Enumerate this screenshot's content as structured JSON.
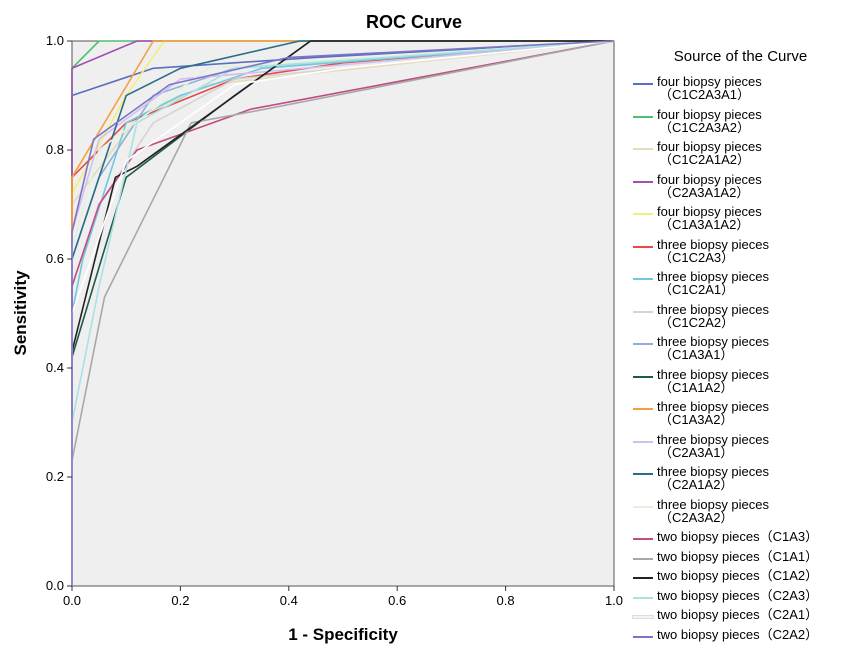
{
  "chart_data": {
    "type": "line",
    "title": "ROC Curve",
    "xlabel": "1 - Specificity",
    "ylabel": "Sensitivity",
    "xlim": [
      0,
      1
    ],
    "ylim": [
      0,
      1
    ],
    "xticks": [
      "0.0",
      "0.2",
      "0.4",
      "0.6",
      "0.8",
      "1.0"
    ],
    "yticks": [
      "0.0",
      "0.2",
      "0.4",
      "0.6",
      "0.8",
      "1.0"
    ],
    "grid": false,
    "legend_title": "Source of the Curve",
    "legend_position": "right",
    "series": [
      {
        "name": "four biopsy pieces",
        "name2": "（C1C2A3A1）",
        "color": "#5b6fc0",
        "points": [
          [
            0,
            0
          ],
          [
            0,
            0.9
          ],
          [
            0.15,
            0.95
          ],
          [
            0.45,
            0.97
          ],
          [
            1,
            1
          ]
        ]
      },
      {
        "name": "four biopsy pieces",
        "name2": "（C1C2A3A2）",
        "color": "#4cc070",
        "points": [
          [
            0,
            0
          ],
          [
            0,
            0.95
          ],
          [
            0.05,
            1
          ],
          [
            1,
            1
          ]
        ]
      },
      {
        "name": "four biopsy pieces",
        "name2": "（C1C2A1A2）",
        "color": "#e6ddb8",
        "points": [
          [
            0,
            0
          ],
          [
            0,
            0.7
          ],
          [
            0.12,
            0.86
          ],
          [
            0.25,
            0.92
          ],
          [
            1,
            1
          ]
        ]
      },
      {
        "name": "four biopsy pieces",
        "name2": "（C2A3A1A2）",
        "color": "#a050b0",
        "points": [
          [
            0,
            0
          ],
          [
            0,
            0.95
          ],
          [
            0.12,
            1
          ],
          [
            1,
            1
          ]
        ]
      },
      {
        "name": "four biopsy pieces",
        "name2": "（C1A3A1A2）",
        "color": "#f0ef78",
        "points": [
          [
            0,
            0
          ],
          [
            0,
            0.72
          ],
          [
            0.1,
            0.9
          ],
          [
            0.17,
            1
          ],
          [
            1,
            1
          ]
        ]
      },
      {
        "name": "three biopsy pieces",
        "name2": "（C1C2A3）",
        "color": "#e84a4a",
        "points": [
          [
            0,
            0
          ],
          [
            0,
            0.75
          ],
          [
            0.1,
            0.85
          ],
          [
            0.3,
            0.93
          ],
          [
            0.5,
            0.96
          ],
          [
            1,
            1
          ]
        ]
      },
      {
        "name": "three biopsy pieces",
        "name2": "（C1C2A1）",
        "color": "#70c8e0",
        "points": [
          [
            0,
            0
          ],
          [
            0,
            0.5
          ],
          [
            0.02,
            0.6
          ],
          [
            0.1,
            0.85
          ],
          [
            0.2,
            0.9
          ],
          [
            0.35,
            0.95
          ],
          [
            1,
            1
          ]
        ]
      },
      {
        "name": "three biopsy pieces",
        "name2": "（C1C2A2）",
        "color": "#d4d4d4",
        "points": [
          [
            0,
            0
          ],
          [
            0,
            0.55
          ],
          [
            0.05,
            0.7
          ],
          [
            0.15,
            0.85
          ],
          [
            0.3,
            0.93
          ],
          [
            1,
            1
          ]
        ]
      },
      {
        "name": "three biopsy pieces",
        "name2": "（C1A3A1）",
        "color": "#8fb0d8",
        "points": [
          [
            0,
            0
          ],
          [
            0,
            0.6
          ],
          [
            0.05,
            0.75
          ],
          [
            0.15,
            0.9
          ],
          [
            0.3,
            0.95
          ],
          [
            1,
            1
          ]
        ]
      },
      {
        "name": "three biopsy pieces",
        "name2": "（C1A1A2）",
        "color": "#1f5a4a",
        "points": [
          [
            0,
            0
          ],
          [
            0,
            0.42
          ],
          [
            0.1,
            0.75
          ],
          [
            0.3,
            0.9
          ],
          [
            0.44,
            1
          ],
          [
            1,
            1
          ]
        ]
      },
      {
        "name": "three biopsy pieces",
        "name2": "（C1A3A2）",
        "color": "#f5a040",
        "points": [
          [
            0,
            0
          ],
          [
            0,
            0.75
          ],
          [
            0.15,
            1
          ],
          [
            1,
            1
          ]
        ]
      },
      {
        "name": "three biopsy pieces",
        "name2": "（C2A3A1）",
        "color": "#d0c0ec",
        "points": [
          [
            0,
            0
          ],
          [
            0,
            0.65
          ],
          [
            0.05,
            0.82
          ],
          [
            0.2,
            0.93
          ],
          [
            1,
            1
          ]
        ]
      },
      {
        "name": "three biopsy pieces",
        "name2": "（C2A1A2）",
        "color": "#2a6e88",
        "points": [
          [
            0,
            0
          ],
          [
            0,
            0.6
          ],
          [
            0.1,
            0.9
          ],
          [
            0.2,
            0.95
          ],
          [
            0.42,
            1
          ],
          [
            1,
            1
          ]
        ]
      },
      {
        "name": "three biopsy pieces",
        "name2": "（C2A3A2）",
        "color": "#e2f2dc",
        "points": [
          [
            0,
            0
          ],
          [
            0,
            0.62
          ],
          [
            0.05,
            0.8
          ],
          [
            0.25,
            0.95
          ],
          [
            1,
            1
          ]
        ]
      },
      {
        "name": "two biopsy pieces（C1A3）",
        "name2": "",
        "color": "#c04c82",
        "points": [
          [
            0,
            0
          ],
          [
            0,
            0.55
          ],
          [
            0.05,
            0.7
          ],
          [
            0.12,
            0.8
          ],
          [
            0.33,
            0.875
          ],
          [
            1,
            1
          ]
        ]
      },
      {
        "name": "two biopsy pieces（C1A1）",
        "name2": "",
        "color": "#a8a8a8",
        "points": [
          [
            0,
            0
          ],
          [
            0,
            0.23
          ],
          [
            0.06,
            0.53
          ],
          [
            0.22,
            0.85
          ],
          [
            0.33,
            0.87
          ],
          [
            1,
            1
          ]
        ]
      },
      {
        "name": "two biopsy pieces（C1A2）",
        "name2": "",
        "color": "#222222",
        "points": [
          [
            0,
            0
          ],
          [
            0,
            0.43
          ],
          [
            0.08,
            0.75
          ],
          [
            0.12,
            0.77
          ],
          [
            0.44,
            1
          ],
          [
            1,
            1
          ]
        ]
      },
      {
        "name": "two biopsy pieces（C2A3）",
        "name2": "",
        "color": "#a8e2e2",
        "points": [
          [
            0,
            0
          ],
          [
            0,
            0.3
          ],
          [
            0.05,
            0.55
          ],
          [
            0.12,
            0.85
          ],
          [
            0.3,
            0.95
          ],
          [
            1,
            1
          ]
        ]
      },
      {
        "name": "two biopsy pieces（C2A1）",
        "name2": "",
        "color": "#ffffff",
        "points": [
          [
            0,
            0
          ],
          [
            0,
            0.5
          ],
          [
            0.1,
            0.78
          ],
          [
            0.3,
            0.92
          ],
          [
            0.5,
            0.95
          ],
          [
            1,
            1
          ]
        ]
      },
      {
        "name": "two biopsy pieces（C2A2）",
        "name2": "",
        "color": "#7d74c8",
        "points": [
          [
            0,
            0
          ],
          [
            0,
            0.65
          ],
          [
            0.04,
            0.82
          ],
          [
            0.18,
            0.92
          ],
          [
            0.4,
            0.97
          ],
          [
            1,
            1
          ]
        ]
      }
    ]
  }
}
